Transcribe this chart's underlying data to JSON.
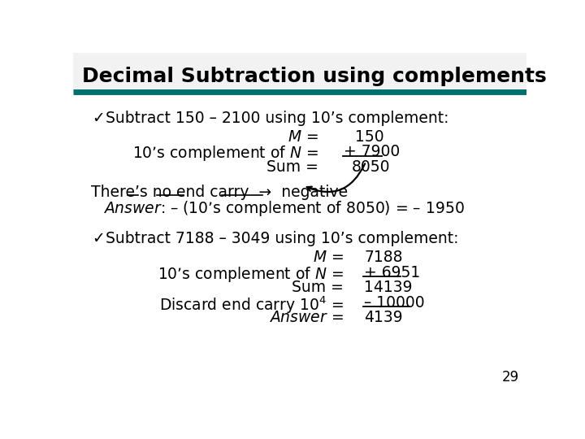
{
  "title": "Decimal Subtraction using complements",
  "header_line_color": "#007070",
  "header_bg": "#f2f2f2",
  "bg_color": "#ffffff",
  "page_number": "29",
  "s1_head": "Subtract 150 – 2100 using 10’s complement:",
  "s1_note": "There’s no end carry  →  negative",
  "s1_answer": "– (10’s complement of 8050) = – 1950",
  "s2_head": "Subtract 7188 – 3049 using 10’s complement:"
}
